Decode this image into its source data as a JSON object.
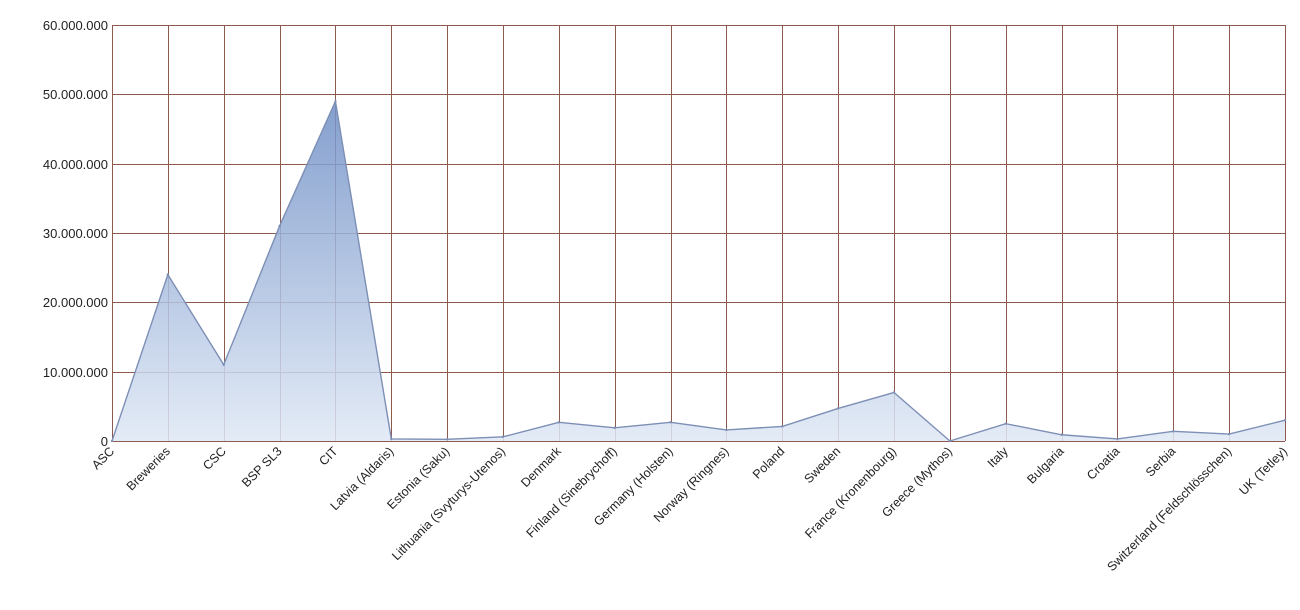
{
  "chart_data": {
    "type": "area",
    "categories": [
      "ASC",
      "Breweries",
      "CSC",
      "BSP SL3",
      "CIT",
      "Latvia (Aldaris)",
      "Estonia (Saku)",
      "Lithuania (Svyturys-Utenos)",
      "Denmark",
      "Finland (Sinebrychoff)",
      "Germany (Holsten)",
      "Norway (Ringnes)",
      "Poland",
      "Sweden",
      "France (Kronenbourg)",
      "Greece (Mythos)",
      "Italy",
      "Bulgaria",
      "Croatia",
      "Serbia",
      "Switzerland (Feldschlösschen)",
      "UK (Tetley)"
    ],
    "values": [
      0,
      24000000,
      11000000,
      31000000,
      49000000,
      300000,
      250000,
      600000,
      2700000,
      1900000,
      2700000,
      1600000,
      2100000,
      4700000,
      7000000,
      0,
      2500000,
      900000,
      300000,
      1400000,
      1000000,
      3000000
    ],
    "title": "",
    "xlabel": "",
    "ylabel": "",
    "ylim": [
      0,
      60000000
    ],
    "yticks": [
      "0",
      "10.000.000",
      "20.000.000",
      "30.000.000",
      "40.000.000",
      "50.000.000",
      "60.000.000"
    ],
    "grid": true,
    "legend": "none",
    "colors": {
      "fill_top": "#6f8fc6",
      "fill_bottom": "#dfe8f5",
      "line": "#7d8fb5",
      "grid": "#8e5a4e"
    }
  }
}
